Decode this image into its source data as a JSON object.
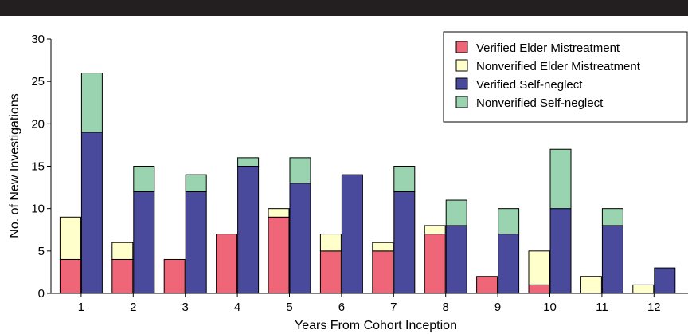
{
  "chart_data": {
    "type": "bar",
    "stacked_pairs": true,
    "categories": [
      "1",
      "2",
      "3",
      "4",
      "5",
      "6",
      "7",
      "8",
      "9",
      "10",
      "11",
      "12"
    ],
    "xlabel": "Years From Cohort Inception",
    "ylabel": "No. of New Investigations",
    "ylim": [
      0,
      30
    ],
    "yticks": [
      "0",
      "5",
      "10",
      "15",
      "20",
      "25",
      "30"
    ],
    "legend_position": "top-right",
    "series": [
      {
        "name": "Verified Elder Mistreatment",
        "color": "#ee6677",
        "stack": "mistreatment",
        "values": [
          4,
          4,
          4,
          7,
          9,
          5,
          5,
          7,
          2,
          1,
          0,
          0
        ]
      },
      {
        "name": "Nonverified Elder Mistreatment",
        "color": "#ffffcc",
        "stack": "mistreatment",
        "values": [
          5,
          2,
          0,
          0,
          1,
          2,
          1,
          1,
          0,
          4,
          2,
          1
        ]
      },
      {
        "name": "Verified Self-neglect",
        "color": "#4a4a9c",
        "stack": "self-neglect",
        "values": [
          19,
          12,
          12,
          15,
          13,
          14,
          12,
          8,
          7,
          10,
          8,
          3
        ]
      },
      {
        "name": "Nonverified Self-neglect",
        "color": "#99d3b0",
        "stack": "self-neglect",
        "values": [
          7,
          3,
          2,
          1,
          3,
          0,
          3,
          3,
          3,
          7,
          2,
          0
        ]
      }
    ]
  }
}
